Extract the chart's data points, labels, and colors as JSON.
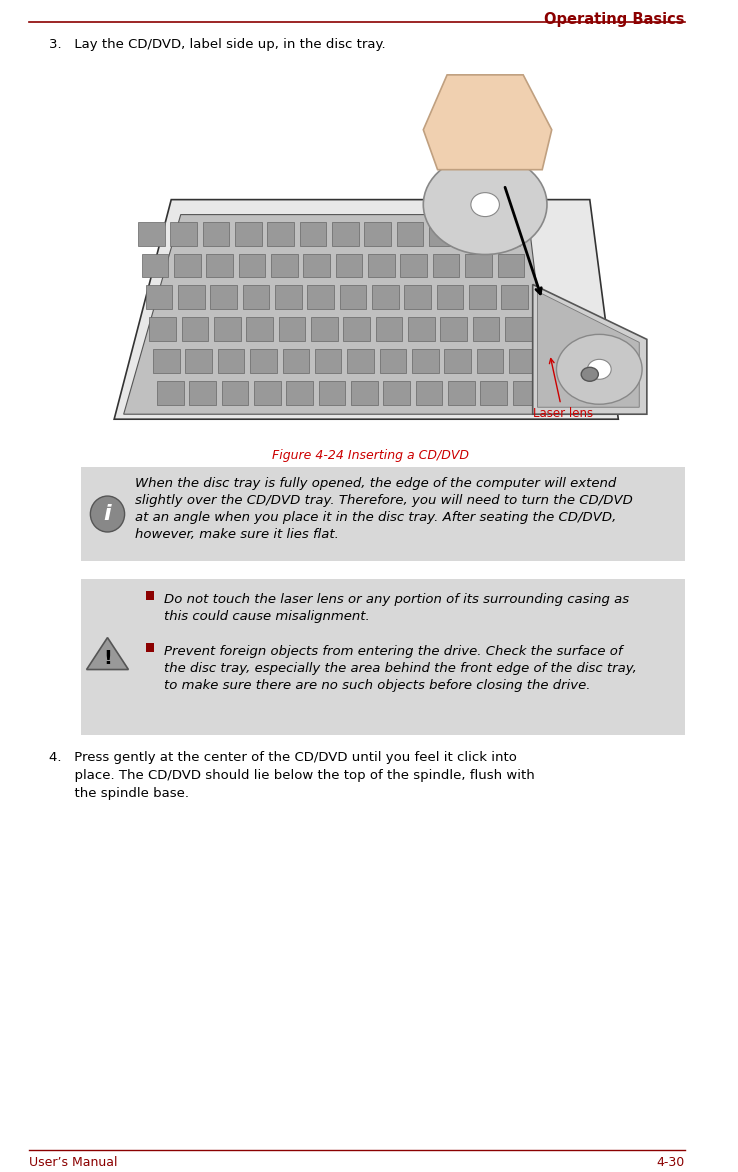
{
  "page_title": "Operating Basics",
  "header_line_color": "#8B0000",
  "footer_line_color": "#8B0000",
  "footer_left": "User’s Manual",
  "footer_right": "4-30",
  "title_color": "#8B0000",
  "bg_color": "#ffffff",
  "step3_text": "3.   Lay the CD/DVD, label side up, in the disc tray.",
  "figure_caption": "Figure 4-24 Inserting a CD/DVD",
  "laser_lens_label": "Laser lens",
  "info_box_bg": "#d8d8d8",
  "warning_box_bg": "#d8d8d8",
  "bullet_color": "#8B0000",
  "info_lines": [
    "When the disc tray is fully opened, the edge of the computer will extend",
    "slightly over the CD/DVD tray. Therefore, you will need to turn the CD/DVD",
    "at an angle when you place it in the disc tray. After seating the CD/DVD,",
    "however, make sure it lies flat."
  ],
  "warn_lines1": [
    "Do not touch the laser lens or any portion of its surrounding casing as",
    "this could cause misalignment."
  ],
  "warn_lines2": [
    "Prevent foreign objects from entering the drive. Check the surface of",
    "the disc tray, especially the area behind the front edge of the disc tray,",
    "to make sure there are no such objects before closing the drive."
  ],
  "step4_lines": [
    "4.   Press gently at the center of the CD/DVD until you feel it click into",
    "      place. The CD/DVD should lie below the top of the spindle, flush with",
    "      the spindle base."
  ],
  "body_font_size": 9.5,
  "caption_font_size": 9.0,
  "header_font_size": 10.5,
  "footer_font_size": 9.0,
  "laser_label_color": "#cc0000",
  "figure_caption_color": "#cc0000"
}
